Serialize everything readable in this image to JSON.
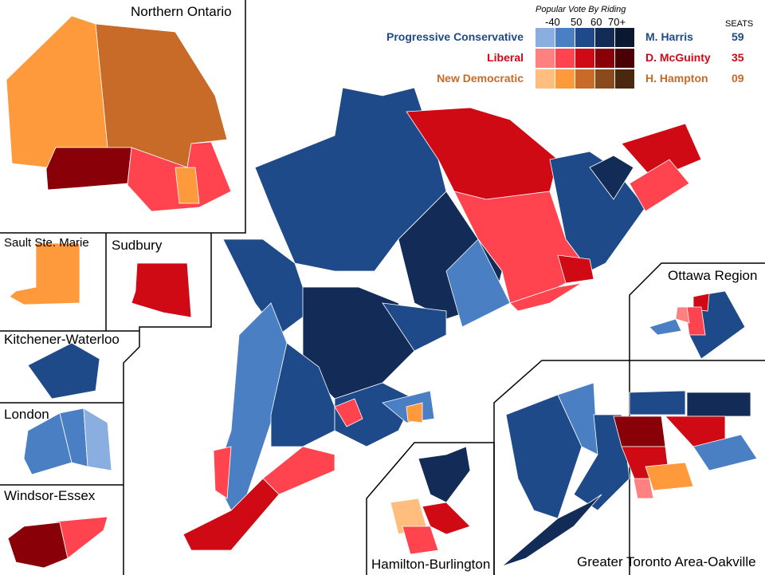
{
  "legend": {
    "title": "Popular Vote By Riding",
    "ticks": [
      "-40",
      "50",
      "60",
      "70+"
    ],
    "seats_header": "SEATS",
    "parties": [
      {
        "name": "Progressive Conservative",
        "leader": "M. Harris",
        "seats": "59",
        "color": "#1f4a8a",
        "scale": [
          "#8aaee0",
          "#4a7fc4",
          "#1f4a8a",
          "#132c57",
          "#0a1830"
        ]
      },
      {
        "name": "Liberal",
        "leader": "D. McGuinty",
        "seats": "35",
        "color": "#d00a14",
        "scale": [
          "#ff8080",
          "#ff4450",
          "#d00a14",
          "#8a0008",
          "#4a0005"
        ]
      },
      {
        "name": "New Democratic",
        "leader": "H. Hampton",
        "seats": "09",
        "color": "#c86a28",
        "scale": [
          "#ffbe7d",
          "#ff9a3c",
          "#c86a28",
          "#8a4a1c",
          "#4a2810"
        ]
      }
    ]
  },
  "insets": {
    "northern_ontario": "Northern Ontario",
    "sault": "Sault Ste. Marie",
    "sudbury": "Sudbury",
    "kitchener": "Kitchener-Waterloo",
    "london": "London",
    "windsor": "Windsor-Essex",
    "hamilton": "Hamilton-Burlington",
    "gta": "Greater Toronto Area-Oakville",
    "ottawa": "Ottawa Region"
  }
}
